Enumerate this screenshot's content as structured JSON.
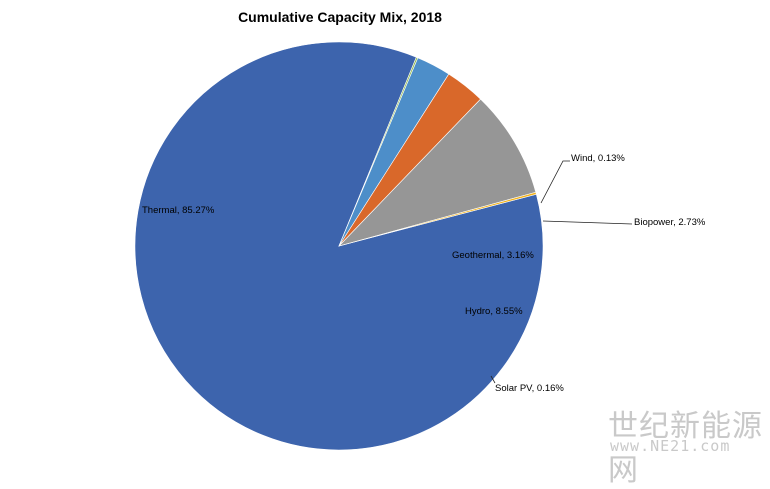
{
  "chart_data": {
    "type": "pie",
    "title": "Cumulative Capacity Mix, 2018",
    "slices": [
      {
        "name": "Thermal",
        "value": 85.27,
        "label": "Thermal, 85.27%",
        "color": "#3d64ad"
      },
      {
        "name": "Wind",
        "value": 0.13,
        "label": "Wind, 0.13%",
        "color": "#8fb84c"
      },
      {
        "name": "Biopower",
        "value": 2.73,
        "label": "Biopower, 2.73%",
        "color": "#4d8ec9"
      },
      {
        "name": "Geothermal",
        "value": 3.16,
        "label": "Geothermal, 3.16%",
        "color": "#d9682a"
      },
      {
        "name": "Hydro",
        "value": 8.55,
        "label": "Hydro, 8.55%",
        "color": "#969696"
      },
      {
        "name": "Solar PV",
        "value": 0.16,
        "label": "Solar PV, 0.16%",
        "color": "#f2b21b"
      }
    ]
  },
  "watermark": {
    "text_cn": "世纪新能源网",
    "url": "www.NE21.com"
  }
}
